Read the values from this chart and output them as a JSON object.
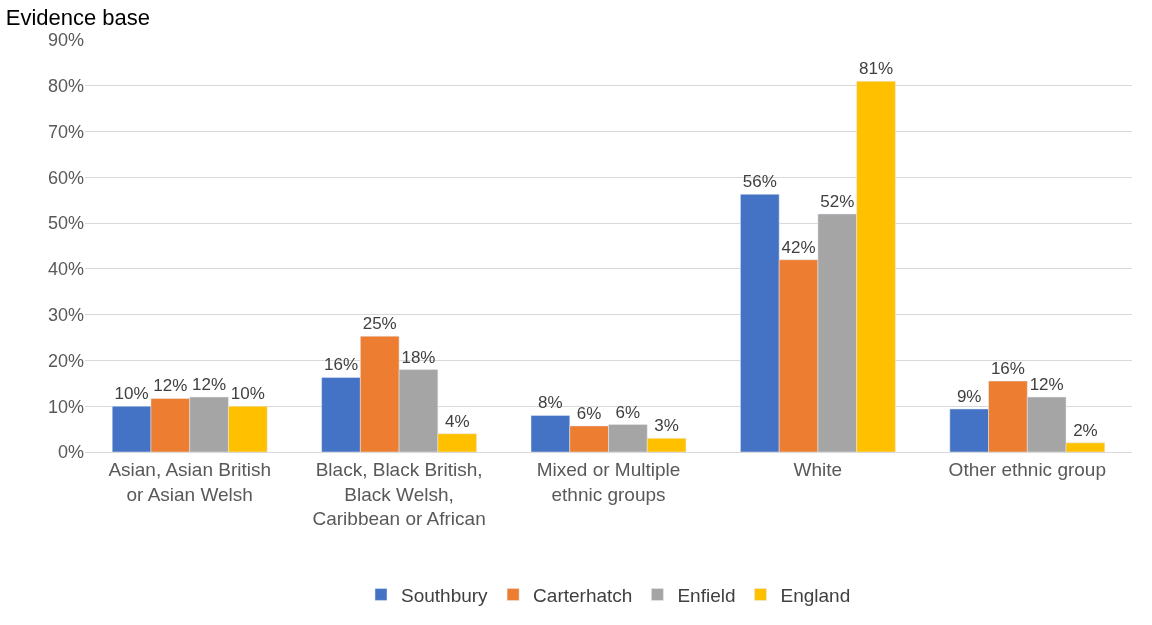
{
  "chart_data": {
    "type": "bar",
    "title": "Evidence base",
    "categories": [
      "Asian, Asian British or Asian Welsh",
      "Black, Black British, Black Welsh, Caribbean or African",
      "Mixed or Multiple ethnic groups",
      "White",
      "Other ethnic group"
    ],
    "series": [
      {
        "name": "Southbury",
        "color": "#4472c4",
        "values": [
          10,
          16.3,
          8,
          56.3,
          9.4
        ],
        "value_labels": [
          "10%",
          "16%",
          "8%",
          "56%",
          "9%"
        ]
      },
      {
        "name": "Carterhatch",
        "color": "#ed7d31",
        "values": [
          11.7,
          25.3,
          5.7,
          42,
          15.5
        ],
        "value_labels": [
          "12%",
          "25%",
          "6%",
          "42%",
          "16%"
        ]
      },
      {
        "name": "Enfield",
        "color": "#a5a5a5",
        "values": [
          12,
          18,
          6,
          52,
          12
        ],
        "value_labels": [
          "12%",
          "18%",
          "6%",
          "52%",
          "12%"
        ]
      },
      {
        "name": "England",
        "color": "#ffc000",
        "values": [
          10,
          4,
          3,
          81,
          2
        ],
        "value_labels": [
          "10%",
          "4%",
          "3%",
          "81%",
          "2%"
        ]
      }
    ],
    "ylim": [
      0,
      90
    ],
    "yticks": [
      {
        "value": 0,
        "label": "0%"
      },
      {
        "value": 10,
        "label": "10%"
      },
      {
        "value": 20,
        "label": "20%"
      },
      {
        "value": 30,
        "label": "30%"
      },
      {
        "value": 40,
        "label": "40%"
      },
      {
        "value": 50,
        "label": "50%"
      },
      {
        "value": 60,
        "label": "60%"
      },
      {
        "value": 70,
        "label": "70%"
      },
      {
        "value": 80,
        "label": "80%"
      },
      {
        "value": 90,
        "label": "90%"
      }
    ],
    "grid": "y",
    "legend": "bottom"
  }
}
